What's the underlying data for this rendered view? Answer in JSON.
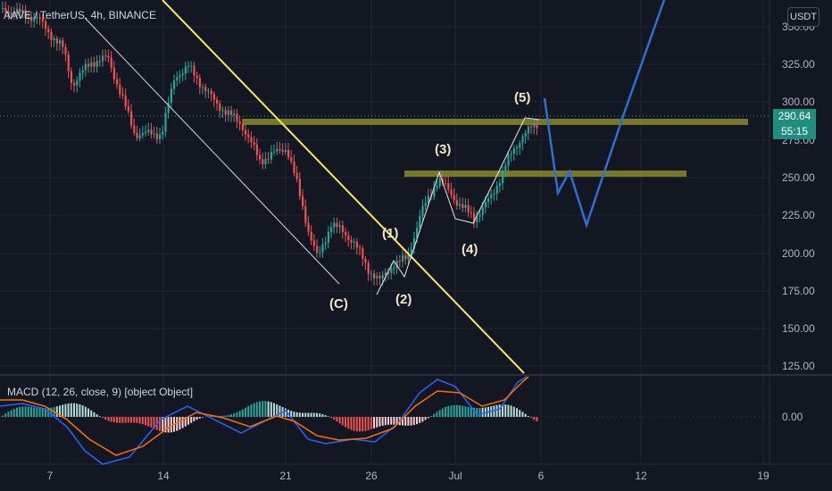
{
  "header": {
    "symbol_line": "AAVE / TetherUS, 4h, BINANCE",
    "currency_button": "USDT"
  },
  "last_price": {
    "value": "290.64",
    "countdown": "55:15",
    "color": "#1e8e7e"
  },
  "price_axis": {
    "ticks": [
      "350.00",
      "325.00",
      "300.00",
      "275.00",
      "250.00",
      "225.00",
      "200.00",
      "175.00",
      "150.00",
      "125.00"
    ]
  },
  "time_axis": {
    "ticks": [
      "7",
      "14",
      "21",
      "26",
      "Jul",
      "6",
      "12",
      "19"
    ]
  },
  "macd": {
    "label": "MACD (12, 26, close, 9) [object Object]",
    "zero_tick": "0.00"
  },
  "wave_labels": {
    "c": "(C)",
    "w1": "(1)",
    "w2": "(2)",
    "w3": "(3)",
    "w4": "(4)",
    "w5": "(5)"
  },
  "colors": {
    "up": "#26a69a",
    "down": "#ef5350",
    "trendline": "#f5e663",
    "zone": "#8a8a2a",
    "projection": "#2f6fd0",
    "macd_line": "#2962ff",
    "signal_line": "#ff6d00"
  }
}
